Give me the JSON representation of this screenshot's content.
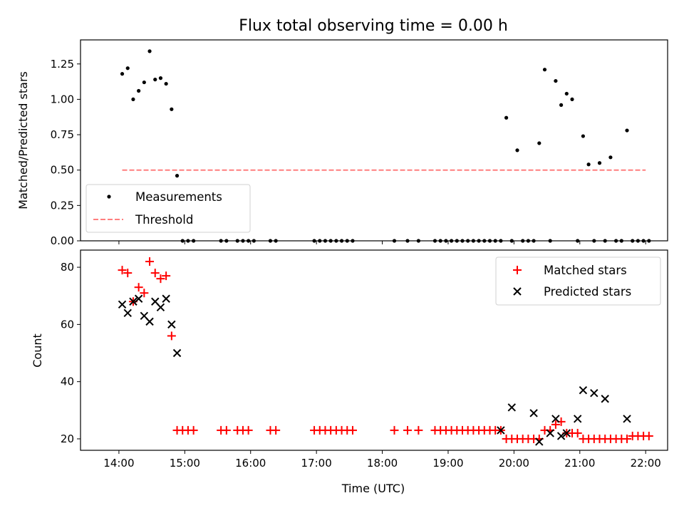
{
  "chart_data": [
    {
      "type": "scatter",
      "title": "Flux total observing time = 0.00 h",
      "xlabel": "",
      "ylabel": "Matched/Predicted stars",
      "xlim": [
        "13:25",
        "22:20"
      ],
      "ylim": [
        0,
        1.42
      ],
      "yticks": [
        "0.00",
        "0.25",
        "0.50",
        "0.75",
        "1.00",
        "1.25"
      ],
      "grid": false,
      "legend": "lower-left",
      "series": [
        {
          "name": "Measurements",
          "marker": "dot",
          "color": "#000000",
          "points": [
            [
              "14:03",
              1.18
            ],
            [
              "14:08",
              1.22
            ],
            [
              "14:13",
              1.0
            ],
            [
              "14:18",
              1.06
            ],
            [
              "14:23",
              1.12
            ],
            [
              "14:28",
              1.34
            ],
            [
              "14:33",
              1.14
            ],
            [
              "14:38",
              1.15
            ],
            [
              "14:43",
              1.11
            ],
            [
              "14:48",
              0.93
            ],
            [
              "14:53",
              0.46
            ],
            [
              "14:58",
              0
            ],
            [
              "15:03",
              0
            ],
            [
              "15:08",
              0
            ],
            [
              "15:33",
              0
            ],
            [
              "15:38",
              0
            ],
            [
              "15:48",
              0
            ],
            [
              "15:53",
              0
            ],
            [
              "15:58",
              0
            ],
            [
              "16:03",
              0
            ],
            [
              "16:18",
              0
            ],
            [
              "16:23",
              0
            ],
            [
              "16:58",
              0
            ],
            [
              "17:03",
              0
            ],
            [
              "17:08",
              0
            ],
            [
              "17:13",
              0
            ],
            [
              "17:18",
              0
            ],
            [
              "17:23",
              0
            ],
            [
              "17:28",
              0
            ],
            [
              "17:33",
              0
            ],
            [
              "18:11",
              0
            ],
            [
              "18:23",
              0
            ],
            [
              "18:33",
              0
            ],
            [
              "18:48",
              0
            ],
            [
              "18:53",
              0
            ],
            [
              "18:58",
              0
            ],
            [
              "19:03",
              0
            ],
            [
              "19:08",
              0
            ],
            [
              "19:13",
              0
            ],
            [
              "19:18",
              0
            ],
            [
              "19:23",
              0
            ],
            [
              "19:28",
              0
            ],
            [
              "19:33",
              0
            ],
            [
              "19:38",
              0
            ],
            [
              "19:43",
              0
            ],
            [
              "19:48",
              0
            ],
            [
              "19:53",
              0.87
            ],
            [
              "19:58",
              0
            ],
            [
              "20:03",
              0.64
            ],
            [
              "20:08",
              0
            ],
            [
              "20:13",
              0
            ],
            [
              "20:18",
              0
            ],
            [
              "20:23",
              0.69
            ],
            [
              "20:28",
              1.21
            ],
            [
              "20:33",
              0
            ],
            [
              "20:38",
              1.13
            ],
            [
              "20:43",
              0.96
            ],
            [
              "20:48",
              1.04
            ],
            [
              "20:53",
              1.0
            ],
            [
              "20:58",
              0
            ],
            [
              "21:03",
              0.74
            ],
            [
              "21:08",
              0.54
            ],
            [
              "21:13",
              0
            ],
            [
              "21:18",
              0.55
            ],
            [
              "21:23",
              0
            ],
            [
              "21:28",
              0.59
            ],
            [
              "21:33",
              0
            ],
            [
              "21:38",
              0
            ],
            [
              "21:43",
              0.78
            ],
            [
              "21:48",
              0
            ],
            [
              "21:53",
              0
            ],
            [
              "21:58",
              0
            ],
            [
              "22:03",
              0
            ]
          ]
        },
        {
          "name": "Threshold",
          "style": "dashed-line",
          "color": "#ff7f7f",
          "points": [
            [
              "14:03",
              0.5
            ],
            [
              "22:00",
              0.5
            ]
          ]
        }
      ]
    },
    {
      "type": "scatter",
      "title": "",
      "xlabel": "Time (UTC)",
      "ylabel": "Count",
      "xlim": [
        "13:25",
        "22:20"
      ],
      "ylim": [
        16,
        86
      ],
      "yticks": [
        "20",
        "40",
        "60",
        "80"
      ],
      "xticks": [
        "14:00",
        "15:00",
        "16:00",
        "17:00",
        "18:00",
        "19:00",
        "20:00",
        "21:00",
        "22:00"
      ],
      "grid": false,
      "legend": "upper-right",
      "series": [
        {
          "name": "Matched stars",
          "marker": "plus",
          "color": "#ff0000",
          "points": [
            [
              "14:03",
              79
            ],
            [
              "14:08",
              78
            ],
            [
              "14:13",
              68
            ],
            [
              "14:18",
              73
            ],
            [
              "14:23",
              71
            ],
            [
              "14:28",
              82
            ],
            [
              "14:33",
              78
            ],
            [
              "14:38",
              76
            ],
            [
              "14:43",
              77
            ],
            [
              "14:48",
              56
            ],
            [
              "14:53",
              23
            ],
            [
              "14:58",
              23
            ],
            [
              "15:03",
              23
            ],
            [
              "15:08",
              23
            ],
            [
              "15:33",
              23
            ],
            [
              "15:38",
              23
            ],
            [
              "15:48",
              23
            ],
            [
              "15:53",
              23
            ],
            [
              "15:58",
              23
            ],
            [
              "16:18",
              23
            ],
            [
              "16:23",
              23
            ],
            [
              "16:58",
              23
            ],
            [
              "17:03",
              23
            ],
            [
              "17:08",
              23
            ],
            [
              "17:13",
              23
            ],
            [
              "17:18",
              23
            ],
            [
              "17:23",
              23
            ],
            [
              "17:28",
              23
            ],
            [
              "17:33",
              23
            ],
            [
              "18:11",
              23
            ],
            [
              "18:23",
              23
            ],
            [
              "18:33",
              23
            ],
            [
              "18:48",
              23
            ],
            [
              "18:53",
              23
            ],
            [
              "18:58",
              23
            ],
            [
              "19:03",
              23
            ],
            [
              "19:08",
              23
            ],
            [
              "19:13",
              23
            ],
            [
              "19:18",
              23
            ],
            [
              "19:23",
              23
            ],
            [
              "19:28",
              23
            ],
            [
              "19:33",
              23
            ],
            [
              "19:38",
              23
            ],
            [
              "19:43",
              23
            ],
            [
              "19:48",
              23
            ],
            [
              "19:53",
              20
            ],
            [
              "19:58",
              20
            ],
            [
              "20:03",
              20
            ],
            [
              "20:08",
              20
            ],
            [
              "20:13",
              20
            ],
            [
              "20:18",
              20
            ],
            [
              "20:23",
              20
            ],
            [
              "20:28",
              23
            ],
            [
              "20:33",
              23
            ],
            [
              "20:38",
              25
            ],
            [
              "20:43",
              26
            ],
            [
              "20:48",
              22
            ],
            [
              "20:53",
              22
            ],
            [
              "20:58",
              22
            ],
            [
              "21:03",
              20
            ],
            [
              "21:08",
              20
            ],
            [
              "21:13",
              20
            ],
            [
              "21:18",
              20
            ],
            [
              "21:23",
              20
            ],
            [
              "21:28",
              20
            ],
            [
              "21:33",
              20
            ],
            [
              "21:38",
              20
            ],
            [
              "21:43",
              20
            ],
            [
              "21:48",
              21
            ],
            [
              "21:53",
              21
            ],
            [
              "21:58",
              21
            ],
            [
              "22:03",
              21
            ]
          ]
        },
        {
          "name": "Predicted stars",
          "marker": "cross",
          "color": "#000000",
          "points": [
            [
              "14:03",
              67
            ],
            [
              "14:08",
              64
            ],
            [
              "14:13",
              68
            ],
            [
              "14:18",
              69
            ],
            [
              "14:23",
              63
            ],
            [
              "14:28",
              61
            ],
            [
              "14:33",
              68
            ],
            [
              "14:38",
              66
            ],
            [
              "14:43",
              69
            ],
            [
              "14:48",
              60
            ],
            [
              "14:53",
              50
            ],
            [
              "19:48",
              23
            ],
            [
              "19:58",
              31
            ],
            [
              "20:18",
              29
            ],
            [
              "20:23",
              19
            ],
            [
              "20:33",
              22
            ],
            [
              "20:38",
              27
            ],
            [
              "20:43",
              21
            ],
            [
              "20:48",
              22
            ],
            [
              "20:58",
              27
            ],
            [
              "21:03",
              37
            ],
            [
              "21:13",
              36
            ],
            [
              "21:23",
              34
            ],
            [
              "21:43",
              27
            ]
          ]
        }
      ]
    }
  ]
}
